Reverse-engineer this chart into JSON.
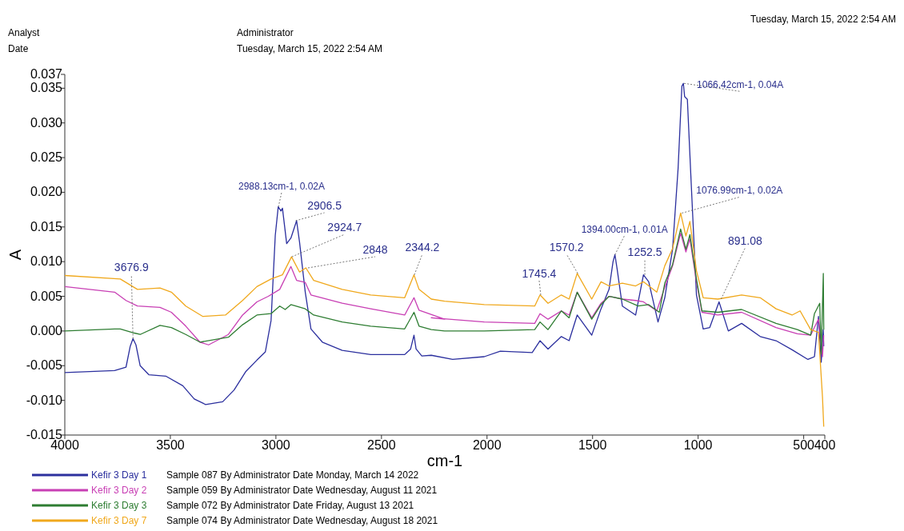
{
  "chart_data": {
    "type": "line",
    "xlabel": "cm-1",
    "ylabel": "A",
    "xlim": [
      4000,
      400
    ],
    "ylim": [
      -0.015,
      0.037
    ],
    "xticks": [
      4000,
      3500,
      3000,
      2500,
      2000,
      1500,
      1000,
      500,
      400
    ],
    "yticks": [
      {
        "value": -0.015,
        "label": "-0.015"
      },
      {
        "value": -0.01,
        "label": "-0.010"
      },
      {
        "value": -0.005,
        "label": "-0.005"
      },
      {
        "value": 0,
        "label": "0.000"
      },
      {
        "value": 0.005,
        "label": "0.005"
      },
      {
        "value": 0.01,
        "label": "0.010"
      },
      {
        "value": 0.015,
        "label": "0.015"
      },
      {
        "value": 0.02,
        "label": "0.020"
      },
      {
        "value": 0.025,
        "label": "0.025"
      },
      {
        "value": 0.03,
        "label": "0.030"
      },
      {
        "value": 0.035,
        "label": "0.035"
      },
      {
        "value": 0.037,
        "label": "0.037"
      }
    ],
    "legend": "bottom",
    "series": [
      {
        "name": "Kefir 3 Day 1",
        "color": "#2b2f9e",
        "x": [
          4000,
          3764,
          3710,
          3690,
          3677,
          3663,
          3643,
          3602,
          3522,
          3441,
          3387,
          3333,
          3252,
          3198,
          3144,
          3090,
          3050,
          3023,
          3003,
          2989,
          2976,
          2969,
          2949,
          2929,
          2902,
          2888,
          2861,
          2834,
          2780,
          2686,
          2551,
          2390,
          2362,
          2346,
          2336,
          2309,
          2264,
          2163,
          2013,
          1937,
          1786,
          1749,
          1711,
          1648,
          1611,
          1573,
          1504,
          1460,
          1422,
          1403,
          1394,
          1384,
          1359,
          1296,
          1259,
          1234,
          1190,
          1158,
          1121,
          1095,
          1077,
          1070,
          1064,
          1051,
          1033,
          1008,
          976,
          945,
          901,
          857,
          794,
          706,
          631,
          555,
          480,
          449,
          430,
          417,
          407,
          405
        ],
        "values": [
          -0.006,
          -0.0057,
          -0.0052,
          -0.0022,
          -0.0011,
          -0.002,
          -0.005,
          -0.0063,
          -0.0065,
          -0.0079,
          -0.0098,
          -0.0106,
          -0.0102,
          -0.0085,
          -0.0059,
          -0.0042,
          -0.003,
          0.0015,
          0.0138,
          0.0179,
          0.0173,
          0.0177,
          0.0126,
          0.0134,
          0.0159,
          0.0128,
          0.0056,
          0.0003,
          -0.0016,
          -0.0028,
          -0.0034,
          -0.0034,
          -0.0026,
          -0.0006,
          -0.0026,
          -0.0036,
          -0.0035,
          -0.0041,
          -0.0037,
          -0.0029,
          -0.0031,
          -0.0014,
          -0.0026,
          -0.0008,
          -0.0014,
          0.0023,
          -0.0006,
          0.0032,
          0.006,
          0.01,
          0.011,
          0.009,
          0.0036,
          0.0023,
          0.0081,
          0.0071,
          0.0013,
          0.0048,
          0.0118,
          0.0234,
          0.0353,
          0.0357,
          0.0338,
          0.0334,
          0.0214,
          0.0052,
          0.0003,
          0.0005,
          0.0042,
          0,
          0.0011,
          -0.0008,
          -0.0014,
          -0.0027,
          -0.0041,
          -0.0037,
          0.0021,
          -0.0045,
          0.0002,
          -0.0022
        ]
      },
      {
        "name": "Kefir 3 Day 2",
        "color": "#c83fb4",
        "x": [
          4000,
          3764,
          3710,
          3656,
          3549,
          3495,
          3427,
          3360,
          3319,
          3225,
          3158,
          3090,
          3036,
          2982,
          2929,
          2902,
          2861,
          2834,
          2686,
          2551,
          2390,
          2346,
          2322,
          2201,
          2264,
          2013,
          1774,
          1749,
          1711,
          1648,
          1611,
          1573,
          1504,
          1460,
          1422,
          1359,
          1296,
          1259,
          1196,
          1158,
          1121,
          1083,
          1058,
          1039,
          1008,
          982,
          907,
          794,
          631,
          530,
          467,
          430,
          411,
          405
        ],
        "values": [
          0.0064,
          0.0056,
          0.0044,
          0.0036,
          0.0034,
          0.0027,
          0.0007,
          -0.0016,
          -0.002,
          -0.0005,
          0.0023,
          0.0042,
          0.005,
          0.006,
          0.0093,
          0.0073,
          0.007,
          0.0052,
          0.004,
          0.0032,
          0.0023,
          0.0048,
          0.003,
          0.0017,
          0.0019,
          0.0013,
          0.0011,
          0.0025,
          0.0017,
          0.0029,
          0.0023,
          0.0056,
          0.0019,
          0.004,
          0.005,
          0.0046,
          0.0044,
          0.0042,
          0.0029,
          0.0063,
          0.0094,
          0.0141,
          0.0114,
          0.0133,
          0.0071,
          0.0027,
          0.0023,
          0.0027,
          0.0005,
          -0.0004,
          -0.0006,
          0.0017,
          -0.0037,
          -0.0006
        ]
      },
      {
        "name": "Kefir 3 Day 3",
        "color": "#2e7d32",
        "x": [
          4000,
          3764,
          3737,
          3670,
          3643,
          3549,
          3495,
          3427,
          3360,
          3225,
          3158,
          3090,
          3023,
          2982,
          2956,
          2929,
          2861,
          2821,
          2686,
          2551,
          2390,
          2346,
          2322,
          2264,
          2201,
          2013,
          1774,
          1749,
          1711,
          1648,
          1611,
          1573,
          1504,
          1460,
          1422,
          1359,
          1284,
          1234,
          1184,
          1158,
          1121,
          1083,
          1058,
          1039,
          1008,
          982,
          907,
          794,
          631,
          530,
          467,
          449,
          424,
          417,
          407,
          405
        ],
        "values": [
          0,
          0.0003,
          0.0003,
          -0.0003,
          -0.0005,
          0.0008,
          0.0005,
          -0.0005,
          -0.0016,
          -0.0009,
          0.0009,
          0.0023,
          0.0025,
          0.0036,
          0.0031,
          0.0038,
          0.0032,
          0.0023,
          0.0013,
          0.0007,
          0.0003,
          0.0027,
          0.0007,
          0.0002,
          0,
          0,
          0.0002,
          0.0013,
          0.0002,
          0.0029,
          0.0019,
          0.0056,
          0.0017,
          0.0038,
          0.005,
          0.0046,
          0.0036,
          0.0038,
          0.0027,
          0.0069,
          0.0096,
          0.0147,
          0.0118,
          0.0139,
          0.0075,
          0.0029,
          0.0027,
          0.0031,
          0.0011,
          0.0002,
          -0.0006,
          0.0025,
          0.004,
          -0.0033,
          0.0083,
          0.0002
        ]
      },
      {
        "name": "Kefir 3 Day 7",
        "color": "#f0a81c",
        "x": [
          4000,
          3737,
          3656,
          3549,
          3495,
          3427,
          3346,
          3239,
          3158,
          3090,
          3023,
          2969,
          2926,
          2888,
          2858,
          2821,
          2686,
          2551,
          2390,
          2346,
          2322,
          2264,
          2201,
          2013,
          1774,
          1749,
          1711,
          1648,
          1611,
          1573,
          1504,
          1460,
          1422,
          1359,
          1296,
          1259,
          1196,
          1158,
          1121,
          1083,
          1058,
          1039,
          1008,
          976,
          907,
          794,
          706,
          631,
          555,
          517,
          467,
          430,
          411,
          405
        ],
        "values": [
          0.008,
          0.0075,
          0.006,
          0.0062,
          0.0056,
          0.0036,
          0.0021,
          0.0023,
          0.0044,
          0.0064,
          0.0075,
          0.0081,
          0.0107,
          0.0085,
          0.0091,
          0.0073,
          0.006,
          0.0052,
          0.0048,
          0.0081,
          0.006,
          0.0046,
          0.0043,
          0.0038,
          0.0036,
          0.0052,
          0.004,
          0.0052,
          0.0046,
          0.0083,
          0.0046,
          0.0071,
          0.0065,
          0.0069,
          0.0065,
          0.0071,
          0.0056,
          0.0094,
          0.0119,
          0.017,
          0.0137,
          0.0158,
          0.0087,
          0.0048,
          0.0046,
          0.0052,
          0.0048,
          0.0032,
          0.0023,
          0.0029,
          0.0002,
          -0.0002,
          -0.0095,
          -0.0138
        ]
      }
    ],
    "annotations": [
      "Analyst",
      "Administrator",
      "Date",
      "Tuesday, March 15, 2022 2:54 AM",
      "Tuesday, March 15, 2022 2:54 AM",
      "Sample 087 By Administrator Date Monday, March 14 2022",
      "Sample 059 By Administrator Date Wednesday, August 11 2021",
      "Sample 072 By Administrator Date Friday, August 13 2021",
      "Sample 074 By Administrator Date Wednesday, August 18 2021",
      {
        "text": "3676.9",
        "x": 3676.9,
        "y": -0.0011
      },
      {
        "text": "2988.13cm-1, 0.02A",
        "x": 2988.13,
        "y": 0.0179
      },
      {
        "text": "2906.5",
        "x": 2906.5,
        "y": 0.0159
      },
      {
        "text": "2924.7",
        "x": 2924.7,
        "y": 0.0107
      },
      {
        "text": "2848",
        "x": 2848,
        "y": 0.0091
      },
      {
        "text": "2344.2",
        "x": 2344.2,
        "y": 0.0081
      },
      {
        "text": "1745.4",
        "x": 1745.4,
        "y": 0.0052
      },
      {
        "text": "1570.2",
        "x": 1570.2,
        "y": 0.0083
      },
      {
        "text": "1394.00cm-1, 0.01A",
        "x": 1394,
        "y": 0.011
      },
      {
        "text": "1252.5",
        "x": 1252.5,
        "y": 0.0081
      },
      {
        "text": "1066.42cm-1, 0.04A",
        "x": 1066.42,
        "y": 0.0357
      },
      {
        "text": "1076.99cm-1, 0.02A",
        "x": 1076.99,
        "y": 0.017
      },
      {
        "text": "891.08",
        "x": 891.08,
        "y": 0.0046
      }
    ]
  }
}
